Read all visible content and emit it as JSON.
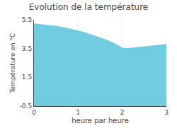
{
  "chart_data": {
    "type": "area",
    "title": "Evolution de la température",
    "xlabel": "heure par heure",
    "ylabel": "Température en °C",
    "x": [
      0,
      0.17,
      0.33,
      0.5,
      0.67,
      0.83,
      1.0,
      1.17,
      1.33,
      1.5,
      1.67,
      1.83,
      2.0,
      2.13,
      2.25,
      2.4,
      2.55,
      2.7,
      2.85,
      3.0
    ],
    "values": [
      5.2,
      5.15,
      5.1,
      5.05,
      4.95,
      4.85,
      4.72,
      4.58,
      4.42,
      4.25,
      4.05,
      3.82,
      3.52,
      3.5,
      3.53,
      3.58,
      3.63,
      3.68,
      3.72,
      3.78
    ],
    "color": "#70cce0",
    "xlim": [
      0,
      3
    ],
    "ylim": [
      -0.5,
      5.5
    ],
    "xticks": [
      0,
      1,
      2,
      3
    ],
    "yticks": [
      5.5,
      3.5,
      1.5,
      -0.5
    ],
    "grid": "x"
  }
}
